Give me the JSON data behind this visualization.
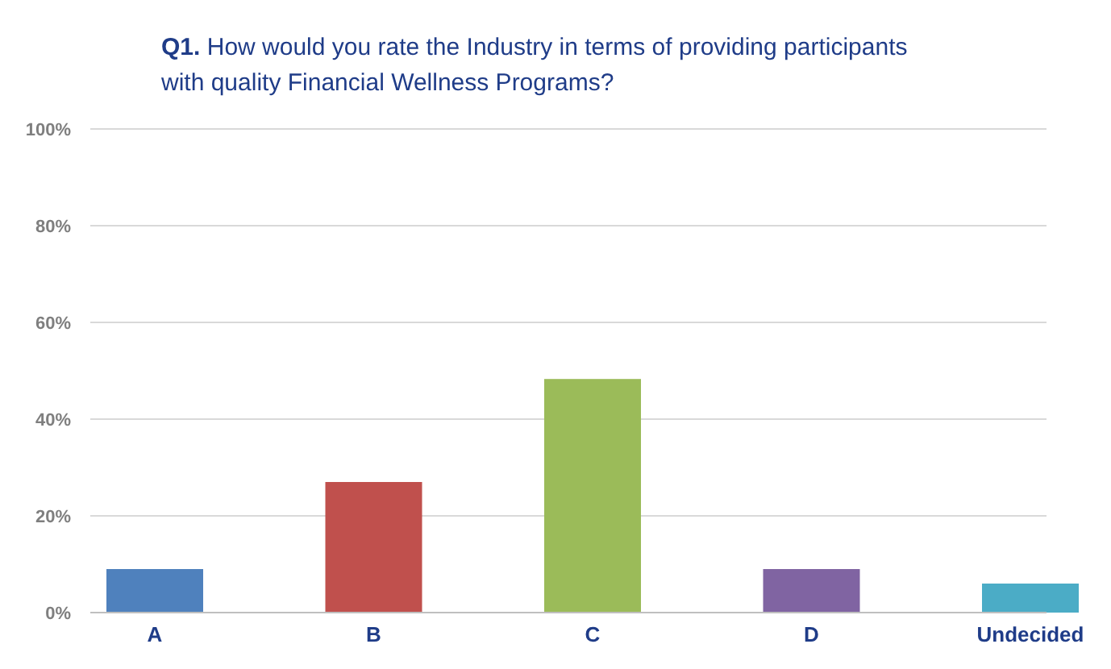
{
  "chart_data": {
    "type": "bar",
    "title": "Q1. How would you rate the Industry in terms of providing participants with quality Financial Wellness Programs?",
    "categories": [
      "A",
      "B",
      "C",
      "D",
      "Undecided"
    ],
    "values": [
      9,
      27,
      48.3,
      9,
      6
    ],
    "colors": [
      "#4f81bd",
      "#c0504d",
      "#9bbb59",
      "#8064a2",
      "#4bacc6"
    ],
    "ylim": [
      0,
      100
    ],
    "yticks": [
      {
        "value": 0,
        "label": "0%"
      },
      {
        "value": 20,
        "label": "20%"
      },
      {
        "value": 40,
        "label": "40%"
      },
      {
        "value": 60,
        "label": "60%"
      },
      {
        "value": 80,
        "label": "80%"
      },
      {
        "value": 100,
        "label": "100%"
      }
    ],
    "grid": "y"
  }
}
